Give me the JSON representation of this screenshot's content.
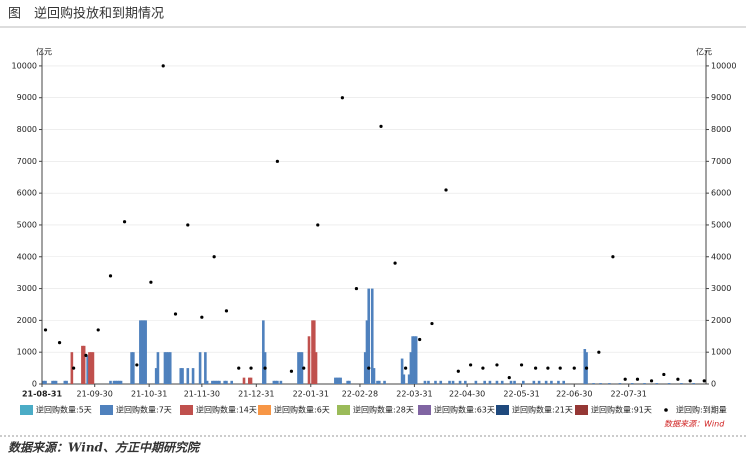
{
  "chart_data": {
    "type": "bar",
    "title": "图　逆回购投放和到期情况",
    "y_unit": "亿元",
    "y2_unit": "亿元",
    "source_note": "数据来源：Wind",
    "xlim": [
      "21-08-31",
      "22-09-13"
    ],
    "xticks": [
      "21-08-31",
      "21-09-30",
      "21-10-31",
      "21-11-30",
      "21-12-31",
      "22-01-31",
      "22-02-28",
      "22-03-31",
      "22-04-30",
      "22-05-31",
      "22-06-30",
      "22-07-31"
    ],
    "ylim": [
      0,
      10500
    ],
    "yticks": [
      0,
      1000,
      2000,
      3000,
      4000,
      5000,
      6000,
      7000,
      8000,
      9000,
      10000
    ],
    "y2lim": [
      0,
      10500
    ],
    "y2ticks": [
      0,
      1000,
      2000,
      3000,
      4000,
      5000,
      6000,
      7000,
      8000,
      9000,
      10000
    ],
    "grid": true,
    "series": [
      {
        "name": "逆回购数量:5天",
        "color": "#4bacc6",
        "type": "bar",
        "x": [],
        "values": []
      },
      {
        "name": "逆回购数量:7天",
        "color": "#4f81bd",
        "type": "bar",
        "x": [
          "21-09-01",
          "21-09-02",
          "21-09-06",
          "21-09-07",
          "21-09-08",
          "21-09-13",
          "21-09-14",
          "21-09-26",
          "21-10-09",
          "21-10-11",
          "21-10-12",
          "21-10-13",
          "21-10-14",
          "21-10-15",
          "21-10-21",
          "21-10-22",
          "21-10-26",
          "21-10-27",
          "21-10-28",
          "21-10-29",
          "21-11-04",
          "21-11-05",
          "21-11-09",
          "21-11-10",
          "21-11-11",
          "21-11-12",
          "21-11-18",
          "21-11-19",
          "21-11-22",
          "21-11-25",
          "21-11-29",
          "21-12-02",
          "21-12-03",
          "21-12-06",
          "21-12-07",
          "21-12-08",
          "21-12-09",
          "21-12-10",
          "21-12-13",
          "21-12-14",
          "21-12-17",
          "22-01-04",
          "22-01-05",
          "22-01-10",
          "22-01-11",
          "22-01-12",
          "22-01-14",
          "22-01-24",
          "22-01-25",
          "22-01-26",
          "22-02-14",
          "22-02-15",
          "22-02-16",
          "22-02-17",
          "22-02-21",
          "22-02-22",
          "22-03-03",
          "22-03-04",
          "22-03-05",
          "22-03-07",
          "22-03-08",
          "22-03-10",
          "22-03-11",
          "22-03-14",
          "22-03-24",
          "22-03-25",
          "22-03-28",
          "22-03-29",
          "22-03-30",
          "22-03-31",
          "22-04-01",
          "22-04-06",
          "22-04-08",
          "22-04-12",
          "22-04-15",
          "22-04-20",
          "22-04-22",
          "22-04-26",
          "22-04-29",
          "22-05-05",
          "22-05-10",
          "22-05-13",
          "22-05-17",
          "22-05-20",
          "22-05-25",
          "22-05-27",
          "22-06-01",
          "22-06-07",
          "22-06-10",
          "22-06-14",
          "22-06-17",
          "22-06-21",
          "22-06-24",
          "22-07-06",
          "22-07-07",
          "22-07-11",
          "22-07-15",
          "22-07-20",
          "22-07-26",
          "22-08-02",
          "22-08-09",
          "22-08-16",
          "22-08-23",
          "22-08-30",
          "22-09-06"
        ],
        "values": [
          100,
          100,
          100,
          100,
          100,
          100,
          100,
          900,
          100,
          100,
          100,
          100,
          100,
          100,
          1000,
          1000,
          2000,
          2000,
          2000,
          2000,
          500,
          1000,
          1000,
          1000,
          1000,
          1000,
          500,
          500,
          500,
          500,
          1000,
          1000,
          100,
          100,
          100,
          100,
          100,
          100,
          100,
          100,
          100,
          2000,
          1000,
          100,
          100,
          100,
          100,
          1000,
          1000,
          1000,
          200,
          200,
          200,
          200,
          100,
          100,
          1000,
          2000,
          3000,
          3000,
          500,
          100,
          100,
          100,
          800,
          300,
          300,
          1000,
          1500,
          1500,
          1500,
          100,
          100,
          100,
          100,
          100,
          100,
          100,
          100,
          100,
          100,
          100,
          100,
          100,
          100,
          100,
          100,
          100,
          100,
          100,
          100,
          100,
          100,
          1100,
          1000,
          30,
          30,
          30,
          30,
          30,
          30,
          30,
          30,
          30,
          30
        ]
      },
      {
        "name": "逆回购数量:14天",
        "color": "#c0504d",
        "type": "bar",
        "x": [
          "21-09-17",
          "21-09-23",
          "21-09-24",
          "21-09-27",
          "21-09-28",
          "21-09-29",
          "21-12-24",
          "21-12-27",
          "21-12-28",
          "22-01-30",
          "22-02-01",
          "22-02-02",
          "22-02-03"
        ],
        "values": [
          1000,
          1200,
          1200,
          1000,
          1000,
          1000,
          200,
          200,
          200,
          1500,
          2000,
          2000,
          1000
        ]
      },
      {
        "name": "逆回购数量:6天",
        "color": "#f79646",
        "type": "bar",
        "x": [],
        "values": []
      },
      {
        "name": "逆回购数量:28天",
        "color": "#9bbb59",
        "type": "bar",
        "x": [],
        "values": []
      },
      {
        "name": "逆回购数量:63天",
        "color": "#8064a2",
        "type": "bar",
        "x": [],
        "values": []
      },
      {
        "name": "逆回购数量:21天",
        "color": "#1f497d",
        "type": "bar",
        "x": [],
        "values": []
      },
      {
        "name": "逆回购数量:91天",
        "color": "#953735",
        "type": "bar",
        "x": [],
        "values": []
      },
      {
        "name": "逆回购:到期量",
        "color": "#000000",
        "type": "scatter",
        "axis": "y2",
        "x": [
          "21-09-02",
          "21-09-10",
          "21-09-18",
          "21-09-25",
          "21-10-02",
          "21-10-09",
          "21-10-17",
          "21-10-24",
          "21-11-01",
          "21-11-08",
          "21-11-15",
          "21-11-22",
          "21-11-30",
          "21-12-07",
          "21-12-14",
          "21-12-21",
          "21-12-28",
          "22-01-05",
          "22-01-12",
          "22-01-20",
          "22-01-27",
          "22-02-04",
          "22-02-18",
          "22-02-26",
          "22-03-05",
          "22-03-12",
          "22-03-20",
          "22-03-26",
          "22-04-03",
          "22-04-10",
          "22-04-18",
          "22-04-25",
          "22-05-02",
          "22-05-09",
          "22-05-17",
          "22-05-24",
          "22-05-31",
          "22-06-08",
          "22-06-15",
          "22-06-22",
          "22-06-30",
          "22-07-07",
          "22-07-14",
          "22-07-22",
          "22-07-29",
          "22-08-05",
          "22-08-13",
          "22-08-20",
          "22-08-28",
          "22-09-04",
          "22-09-12"
        ],
        "values": [
          1700,
          1300,
          500,
          900,
          1700,
          3400,
          5100,
          600,
          3200,
          10000,
          2200,
          5000,
          2100,
          4000,
          2300,
          500,
          500,
          500,
          7000,
          400,
          500,
          5000,
          9000,
          3000,
          500,
          8100,
          3800,
          500,
          1400,
          1900,
          6100,
          400,
          600,
          500,
          600,
          200,
          600,
          500,
          500,
          500,
          500,
          500,
          1000,
          4000,
          150,
          150,
          100,
          300,
          150,
          100,
          100
        ]
      }
    ]
  },
  "footer": "数据来源：Wind、方正中期研究院"
}
